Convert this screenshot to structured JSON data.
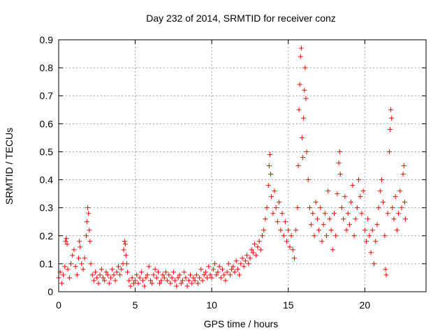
{
  "chart_data": {
    "type": "scatter",
    "title": "Day 232 of 2014, SRMTID for receiver conz",
    "xlabel": "GPS time / hours",
    "ylabel": "SRMTID / TECUs",
    "xlim": [
      0,
      24
    ],
    "ylim": [
      0,
      0.9
    ],
    "xticks": [
      "0",
      "5",
      "10",
      "15",
      "20"
    ],
    "yticks": [
      "0",
      "0.1",
      "0.2",
      "0.3",
      "0.4",
      "0.5",
      "0.6",
      "0.7",
      "0.8",
      "0.9"
    ],
    "grid": true,
    "marker": "+",
    "color": "#ff0000",
    "series": [
      {
        "name": "SRMTID",
        "points": [
          [
            0.0,
            0.05
          ],
          [
            0.1,
            0.07
          ],
          [
            0.2,
            0.03
          ],
          [
            0.3,
            0.06
          ],
          [
            0.4,
            0.09
          ],
          [
            0.45,
            0.18
          ],
          [
            0.5,
            0.19
          ],
          [
            0.55,
            0.17
          ],
          [
            0.6,
            0.08
          ],
          [
            0.7,
            0.05
          ],
          [
            0.8,
            0.1
          ],
          [
            0.9,
            0.13
          ],
          [
            1.0,
            0.15
          ],
          [
            1.1,
            0.09
          ],
          [
            1.2,
            0.06
          ],
          [
            1.3,
            0.12
          ],
          [
            1.35,
            0.18
          ],
          [
            1.4,
            0.16
          ],
          [
            1.5,
            0.1
          ],
          [
            1.6,
            0.08
          ],
          [
            1.7,
            0.12
          ],
          [
            1.8,
            0.2
          ],
          [
            1.85,
            0.25
          ],
          [
            1.9,
            0.3
          ],
          [
            1.95,
            0.28
          ],
          [
            2.0,
            0.22
          ],
          [
            2.05,
            0.18
          ],
          [
            2.1,
            0.1
          ],
          [
            2.2,
            0.06
          ],
          [
            2.3,
            0.04
          ],
          [
            2.4,
            0.07
          ],
          [
            2.5,
            0.05
          ],
          [
            2.6,
            0.03
          ],
          [
            2.7,
            0.06
          ],
          [
            2.8,
            0.08
          ],
          [
            2.9,
            0.05
          ],
          [
            3.0,
            0.04
          ],
          [
            3.1,
            0.07
          ],
          [
            3.2,
            0.06
          ],
          [
            3.3,
            0.03
          ],
          [
            3.4,
            0.05
          ],
          [
            3.5,
            0.08
          ],
          [
            3.6,
            0.06
          ],
          [
            3.7,
            0.04
          ],
          [
            3.8,
            0.07
          ],
          [
            3.9,
            0.09
          ],
          [
            4.0,
            0.06
          ],
          [
            4.1,
            0.08
          ],
          [
            4.2,
            0.1
          ],
          [
            4.25,
            0.15
          ],
          [
            4.3,
            0.18
          ],
          [
            4.35,
            0.17
          ],
          [
            4.4,
            0.13
          ],
          [
            4.45,
            0.1
          ],
          [
            4.5,
            0.07
          ],
          [
            4.6,
            0.04
          ],
          [
            4.7,
            0.02
          ],
          [
            4.8,
            0.05
          ],
          [
            4.9,
            0.03
          ],
          [
            5.0,
            0.04
          ],
          [
            5.1,
            0.06
          ],
          [
            5.2,
            0.03
          ],
          [
            5.3,
            0.05
          ],
          [
            5.4,
            0.07
          ],
          [
            5.5,
            0.04
          ],
          [
            5.6,
            0.02
          ],
          [
            5.7,
            0.05
          ],
          [
            5.8,
            0.06
          ],
          [
            5.9,
            0.09
          ],
          [
            6.0,
            0.04
          ],
          [
            6.1,
            0.03
          ],
          [
            6.2,
            0.06
          ],
          [
            6.3,
            0.08
          ],
          [
            6.4,
            0.05
          ],
          [
            6.5,
            0.07
          ],
          [
            6.6,
            0.03
          ],
          [
            6.7,
            0.04
          ],
          [
            6.8,
            0.06
          ],
          [
            6.9,
            0.05
          ],
          [
            7.0,
            0.07
          ],
          [
            7.1,
            0.04
          ],
          [
            7.2,
            0.06
          ],
          [
            7.3,
            0.03
          ],
          [
            7.4,
            0.05
          ],
          [
            7.5,
            0.07
          ],
          [
            7.6,
            0.04
          ],
          [
            7.7,
            0.02
          ],
          [
            7.8,
            0.05
          ],
          [
            7.9,
            0.06
          ],
          [
            8.0,
            0.03
          ],
          [
            8.1,
            0.04
          ],
          [
            8.2,
            0.07
          ],
          [
            8.3,
            0.05
          ],
          [
            8.4,
            0.02
          ],
          [
            8.5,
            0.04
          ],
          [
            8.6,
            0.06
          ],
          [
            8.7,
            0.03
          ],
          [
            8.8,
            0.05
          ],
          [
            8.9,
            0.04
          ],
          [
            9.0,
            0.06
          ],
          [
            9.1,
            0.03
          ],
          [
            9.2,
            0.05
          ],
          [
            9.3,
            0.08
          ],
          [
            9.4,
            0.04
          ],
          [
            9.5,
            0.06
          ],
          [
            9.6,
            0.07
          ],
          [
            9.7,
            0.05
          ],
          [
            9.8,
            0.09
          ],
          [
            9.9,
            0.06
          ],
          [
            10.0,
            0.05
          ],
          [
            10.1,
            0.08
          ],
          [
            10.2,
            0.1
          ],
          [
            10.3,
            0.06
          ],
          [
            10.4,
            0.07
          ],
          [
            10.5,
            0.09
          ],
          [
            10.6,
            0.05
          ],
          [
            10.7,
            0.08
          ],
          [
            10.8,
            0.06
          ],
          [
            10.9,
            0.04
          ],
          [
            11.0,
            0.07
          ],
          [
            11.1,
            0.1
          ],
          [
            11.2,
            0.06
          ],
          [
            11.3,
            0.08
          ],
          [
            11.4,
            0.09
          ],
          [
            11.5,
            0.07
          ],
          [
            11.6,
            0.11
          ],
          [
            11.7,
            0.08
          ],
          [
            11.8,
            0.06
          ],
          [
            11.9,
            0.1
          ],
          [
            12.0,
            0.12
          ],
          [
            12.1,
            0.09
          ],
          [
            12.2,
            0.11
          ],
          [
            12.3,
            0.13
          ],
          [
            12.4,
            0.1
          ],
          [
            12.5,
            0.12
          ],
          [
            12.6,
            0.15
          ],
          [
            12.7,
            0.14
          ],
          [
            12.8,
            0.17
          ],
          [
            12.9,
            0.13
          ],
          [
            13.0,
            0.16
          ],
          [
            13.1,
            0.18
          ],
          [
            13.2,
            0.15
          ],
          [
            13.3,
            0.2
          ],
          [
            13.4,
            0.22
          ],
          [
            13.5,
            0.26
          ],
          [
            13.6,
            0.3
          ],
          [
            13.7,
            0.38
          ],
          [
            13.75,
            0.45
          ],
          [
            13.8,
            0.49
          ],
          [
            13.85,
            0.42
          ],
          [
            13.9,
            0.34
          ],
          [
            14.0,
            0.28
          ],
          [
            14.1,
            0.36
          ],
          [
            14.2,
            0.3
          ],
          [
            14.3,
            0.25
          ],
          [
            14.4,
            0.32
          ],
          [
            14.5,
            0.22
          ],
          [
            14.6,
            0.28
          ],
          [
            14.7,
            0.2
          ],
          [
            14.8,
            0.25
          ],
          [
            14.9,
            0.18
          ],
          [
            15.0,
            0.22
          ],
          [
            15.1,
            0.16
          ],
          [
            15.2,
            0.2
          ],
          [
            15.3,
            0.15
          ],
          [
            15.4,
            0.12
          ],
          [
            15.5,
            0.22
          ],
          [
            15.6,
            0.3
          ],
          [
            15.65,
            0.45
          ],
          [
            15.7,
            0.65
          ],
          [
            15.75,
            0.74
          ],
          [
            15.8,
            0.84
          ],
          [
            15.85,
            0.87
          ],
          [
            15.9,
            0.55
          ],
          [
            15.95,
            0.48
          ],
          [
            16.0,
            0.62
          ],
          [
            16.05,
            0.72
          ],
          [
            16.1,
            0.8
          ],
          [
            16.15,
            0.69
          ],
          [
            16.2,
            0.5
          ],
          [
            16.3,
            0.4
          ],
          [
            16.4,
            0.3
          ],
          [
            16.5,
            0.24
          ],
          [
            16.6,
            0.28
          ],
          [
            16.7,
            0.2
          ],
          [
            16.8,
            0.32
          ],
          [
            16.9,
            0.26
          ],
          [
            17.0,
            0.22
          ],
          [
            17.1,
            0.3
          ],
          [
            17.2,
            0.18
          ],
          [
            17.3,
            0.24
          ],
          [
            17.4,
            0.28
          ],
          [
            17.5,
            0.2
          ],
          [
            17.6,
            0.36
          ],
          [
            17.7,
            0.26
          ],
          [
            17.8,
            0.22
          ],
          [
            17.9,
            0.15
          ],
          [
            18.0,
            0.28
          ],
          [
            18.1,
            0.2
          ],
          [
            18.2,
            0.35
          ],
          [
            18.3,
            0.46
          ],
          [
            18.35,
            0.5
          ],
          [
            18.4,
            0.42
          ],
          [
            18.5,
            0.3
          ],
          [
            18.6,
            0.26
          ],
          [
            18.7,
            0.34
          ],
          [
            18.8,
            0.22
          ],
          [
            18.9,
            0.28
          ],
          [
            19.0,
            0.24
          ],
          [
            19.1,
            0.32
          ],
          [
            19.2,
            0.38
          ],
          [
            19.3,
            0.2
          ],
          [
            19.4,
            0.26
          ],
          [
            19.5,
            0.3
          ],
          [
            19.6,
            0.4
          ],
          [
            19.7,
            0.34
          ],
          [
            19.8,
            0.28
          ],
          [
            19.9,
            0.36
          ],
          [
            20.0,
            0.22
          ],
          [
            20.1,
            0.18
          ],
          [
            20.2,
            0.26
          ],
          [
            20.3,
            0.2
          ],
          [
            20.4,
            0.14
          ],
          [
            20.5,
            0.22
          ],
          [
            20.6,
            0.1
          ],
          [
            20.7,
            0.18
          ],
          [
            20.8,
            0.24
          ],
          [
            20.9,
            0.3
          ],
          [
            21.0,
            0.36
          ],
          [
            21.1,
            0.4
          ],
          [
            21.2,
            0.32
          ],
          [
            21.3,
            0.2
          ],
          [
            21.35,
            0.08
          ],
          [
            21.4,
            0.06
          ],
          [
            21.5,
            0.28
          ],
          [
            21.6,
            0.5
          ],
          [
            21.65,
            0.58
          ],
          [
            21.7,
            0.65
          ],
          [
            21.75,
            0.62
          ],
          [
            21.8,
            0.3
          ],
          [
            21.9,
            0.26
          ],
          [
            22.0,
            0.34
          ],
          [
            22.1,
            0.22
          ],
          [
            22.2,
            0.28
          ],
          [
            22.3,
            0.36
          ],
          [
            22.4,
            0.3
          ],
          [
            22.5,
            0.42
          ],
          [
            22.55,
            0.45
          ],
          [
            22.6,
            0.32
          ],
          [
            22.65,
            0.26
          ]
        ]
      }
    ]
  }
}
